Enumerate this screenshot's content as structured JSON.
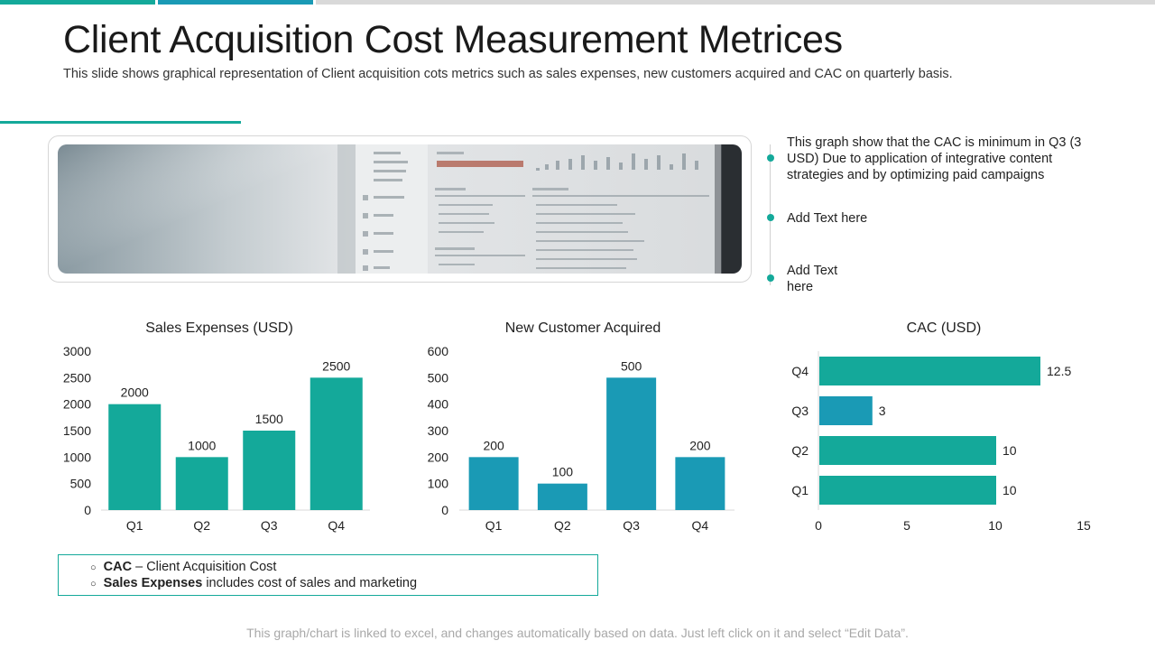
{
  "slide": {
    "title": "Client Acquisition Cost Measurement Metrices",
    "subtitle": "This slide shows graphical representation of Client acquisition cots metrics such as sales expenses, new customers acquired and CAC on quarterly basis.",
    "footer": "This graph/chart is linked to excel, and changes automatically based on data. Just left click on it and select “Edit Data”."
  },
  "notes": [
    "This graph show that the CAC is minimum in Q3 (3 USD) Due to application of integrative content strategies and by optimizing paid campaigns",
    "Add Text here",
    "Add Text here"
  ],
  "legend": [
    {
      "term": "CAC",
      "text": " – Client Acquisition Cost"
    },
    {
      "term": "Sales Expenses",
      "text": " includes cost of sales and marketing"
    }
  ],
  "colors": {
    "teal": "#14a99a",
    "blue": "#1a9ab5",
    "top_bar_1": "#14a99a",
    "top_bar_2": "#1a9ab5",
    "top_bar_3": "#d9d9d9"
  },
  "chart_data": [
    {
      "type": "bar",
      "title": "Sales Expenses (USD)",
      "categories": [
        "Q1",
        "Q2",
        "Q3",
        "Q4"
      ],
      "values": [
        2000,
        1000,
        1500,
        2500
      ],
      "ylim": [
        0,
        3000
      ],
      "yticks": [
        0,
        500,
        1000,
        1500,
        2000,
        2500,
        3000
      ],
      "color": "#14a99a",
      "xlabel": "",
      "ylabel": ""
    },
    {
      "type": "bar",
      "title": "New Customer Acquired",
      "categories": [
        "Q1",
        "Q2",
        "Q3",
        "Q4"
      ],
      "values": [
        200,
        100,
        500,
        200
      ],
      "ylim": [
        0,
        600
      ],
      "yticks": [
        0,
        100,
        200,
        300,
        400,
        500,
        600
      ],
      "color": "#1a9ab5",
      "xlabel": "",
      "ylabel": ""
    },
    {
      "type": "bar",
      "orientation": "horizontal",
      "title": "CAC (USD)",
      "categories": [
        "Q1",
        "Q2",
        "Q3",
        "Q4"
      ],
      "values": [
        10,
        10,
        3,
        12.5
      ],
      "colors": [
        "#14a99a",
        "#14a99a",
        "#1a9ab5",
        "#14a99a"
      ],
      "xlim": [
        0,
        15
      ],
      "xticks": [
        0,
        5,
        10,
        15
      ],
      "xlabel": "",
      "ylabel": ""
    }
  ]
}
